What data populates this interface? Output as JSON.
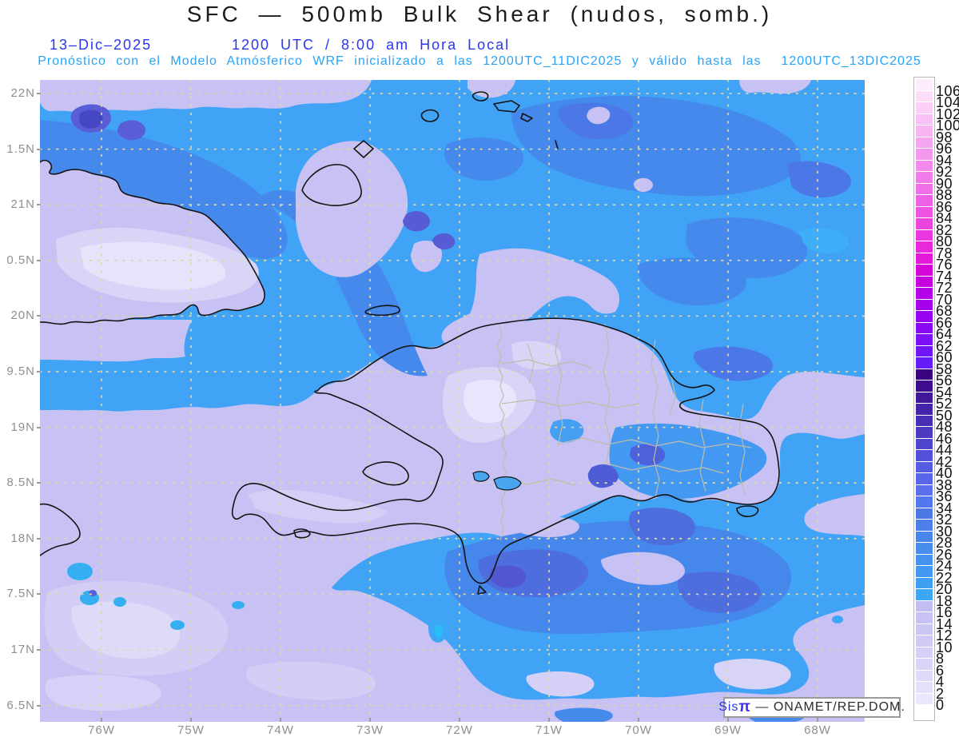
{
  "title": "SFC — 500mb Bulk Shear (nudos, somb.)",
  "header": {
    "date": "13–Dic–2025",
    "time_line": "1200 UTC / 8:00 am Hora Local",
    "forecast_line": "Pronóstico con el Modelo Atmósferico WRF inicializado a las 1200UTC_11DIC2025 y válido hasta las  1200UTC_13DIC2025"
  },
  "axes": {
    "lat_labels": [
      "22N",
      "1.5N",
      "21N",
      "0.5N",
      "20N",
      "9.5N",
      "19N",
      "8.5N",
      "18N",
      "7.5N",
      "17N",
      "6.5N"
    ],
    "lon_labels": [
      "76W",
      "75W",
      "74W",
      "73W",
      "72W",
      "71W",
      "70W",
      "69W",
      "68W"
    ]
  },
  "colorbar": {
    "unit": "nudos",
    "values": [
      106,
      104,
      102,
      100,
      98,
      96,
      94,
      92,
      90,
      88,
      86,
      84,
      82,
      80,
      78,
      76,
      74,
      72,
      70,
      68,
      66,
      64,
      62,
      60,
      58,
      56,
      54,
      52,
      50,
      48,
      46,
      44,
      42,
      40,
      38,
      36,
      34,
      32,
      30,
      28,
      26,
      24,
      22,
      20,
      18,
      16,
      14,
      12,
      10,
      8,
      6,
      4,
      2,
      0
    ],
    "colors": [
      "#fdecfc",
      "#fcdef9",
      "#fad0f7",
      "#f9c2f5",
      "#f7b4f2",
      "#f6a6f0",
      "#f498ee",
      "#f38aec",
      "#f17ce9",
      "#f06ee7",
      "#ee60e5",
      "#ed52e2",
      "#eb44e0",
      "#ea36de",
      "#e828db",
      "#e31bd8",
      "#d405d8",
      "#c400df",
      "#b400e6",
      "#a400ec",
      "#9703f0",
      "#8a09f3",
      "#7d0ff5",
      "#7016f7",
      "#641df9",
      "#3a0380",
      "#3d0d8d",
      "#40189a",
      "#4423a8",
      "#472eb5",
      "#4b39c2",
      "#4e44ce",
      "#5250da",
      "#555be3",
      "#5966ea",
      "#5c70ee",
      "#5377ef",
      "#4e79e5",
      "#4c80e8",
      "#4a86ea",
      "#488ced",
      "#4692ef",
      "#4399f1",
      "#419ff3",
      "#3ea6f6",
      "#c3bef2",
      "#c7c2f3",
      "#cbc7f4",
      "#cfcbf5",
      "#d4d0f6",
      "#d9d5f7",
      "#dedaf9",
      "#e3e0fa",
      "#e9e7fb",
      "#ffffff"
    ]
  },
  "watermark": {
    "brand": "Sis",
    "pi": "π",
    "suffix": " — ONAMET/REP.DOM."
  },
  "colors": {
    "title_text": "#1c1c1c",
    "header_blue": "#2a35ee",
    "header_cyan": "#27a3f8",
    "axis_label_gray": "#8f8f8f",
    "grid_dots": "#dbd8ac",
    "province_border": "#c0bcaa",
    "coastline": "#141414",
    "field_base_lavender": "#c7c2f3",
    "field_azure": "#41a3f5",
    "field_medium_blue": "#4589ec",
    "field_royal_blue": "#4b78e6"
  }
}
